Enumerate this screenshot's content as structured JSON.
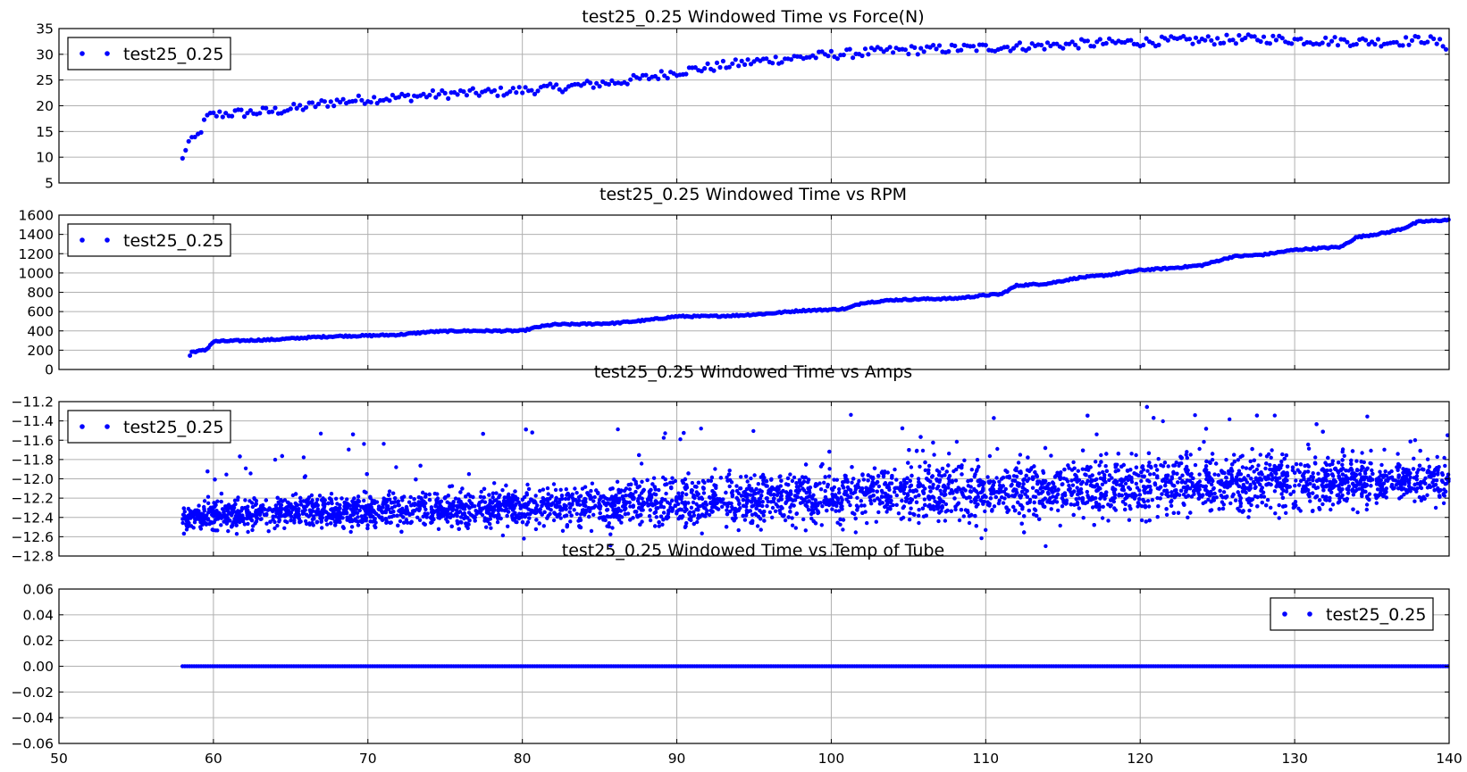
{
  "figure": {
    "series_color": "#0000ff",
    "marker": "point"
  },
  "chart_data": [
    {
      "type": "scatter",
      "title": "test25_0.25 Windowed Time vs Force(N)",
      "xlim": [
        50,
        140
      ],
      "ylim": [
        5,
        35
      ],
      "yticks": [
        "5",
        "10",
        "15",
        "20",
        "25",
        "30",
        "35"
      ],
      "xticks": [],
      "grid": true,
      "legend": {
        "position": "upper-left",
        "entries": [
          "test25_0.25"
        ]
      },
      "series": [
        {
          "name": "test25_0.25",
          "color": "#0000ff",
          "x": [
            58,
            58.3,
            58.6,
            59,
            59.3,
            59.6,
            60,
            61,
            62,
            63,
            64,
            65,
            66,
            67,
            68,
            70,
            72,
            74,
            76,
            78,
            80,
            82,
            84,
            86,
            88,
            90,
            92,
            94,
            96,
            98,
            100,
            102,
            104,
            106,
            108,
            110,
            112,
            114,
            116,
            118,
            120,
            122,
            124,
            126,
            128,
            130,
            132,
            134,
            136,
            137.5,
            138.5,
            140
          ],
          "y": [
            9.5,
            12.8,
            13.0,
            14.2,
            16.0,
            17.8,
            18.2,
            18.5,
            18.6,
            18.8,
            19.0,
            19.4,
            19.8,
            20.4,
            20.8,
            21.3,
            21.6,
            22.1,
            22.4,
            22.6,
            23.0,
            23.4,
            24.0,
            24.6,
            25.4,
            26.6,
            27.4,
            28.2,
            28.9,
            29.4,
            29.9,
            30.3,
            30.7,
            30.9,
            31.1,
            31.3,
            31.5,
            31.7,
            32.0,
            32.2,
            32.4,
            32.6,
            32.7,
            32.9,
            33.0,
            32.8,
            32.6,
            32.5,
            32.4,
            32.6,
            33.0,
            31.5
          ],
          "spread": 0.9
        }
      ]
    },
    {
      "type": "scatter",
      "title": "test25_0.25 Windowed Time vs RPM",
      "xlim": [
        50,
        140
      ],
      "ylim": [
        0,
        1600
      ],
      "yticks": [
        "0",
        "200",
        "400",
        "600",
        "800",
        "1000",
        "1200",
        "1400",
        "1600"
      ],
      "xticks": [],
      "grid": true,
      "legend": {
        "position": "upper-left",
        "entries": [
          "test25_0.25"
        ]
      },
      "series": [
        {
          "name": "test25_0.25",
          "color": "#0000ff",
          "x": [
            58,
            58.4,
            58.5,
            59.5,
            60,
            62,
            64,
            66,
            68,
            70,
            72,
            74,
            76,
            78,
            80,
            81,
            82,
            84,
            86,
            88,
            90,
            92,
            94,
            96,
            98,
            100,
            101,
            102,
            104,
            106,
            108,
            110,
            111,
            112,
            114,
            116,
            118,
            120,
            122,
            124,
            126,
            128,
            130,
            132,
            133,
            134,
            136,
            137,
            138,
            140
          ],
          "y": [
            0,
            0,
            180,
            200,
            290,
            300,
            310,
            330,
            345,
            350,
            360,
            390,
            400,
            400,
            400,
            440,
            465,
            470,
            480,
            510,
            550,
            550,
            560,
            580,
            610,
            620,
            630,
            690,
            720,
            730,
            735,
            770,
            780,
            870,
            890,
            950,
            980,
            1030,
            1050,
            1080,
            1170,
            1190,
            1240,
            1260,
            1270,
            1370,
            1420,
            1460,
            1530,
            1550
          ],
          "spread": 8
        }
      ]
    },
    {
      "type": "scatter",
      "title": "test25_0.25 Windowed Time vs Amps",
      "xlim": [
        50,
        140
      ],
      "ylim": [
        -12.8,
        -11.2
      ],
      "yticks": [
        "−12.8",
        "−12.6",
        "−12.4",
        "−12.2",
        "−12.0",
        "−11.8",
        "−11.6",
        "−11.4",
        "−11.2"
      ],
      "xticks": [],
      "grid": true,
      "legend": {
        "position": "upper-left",
        "entries": [
          "test25_0.25"
        ]
      },
      "series": [
        {
          "name": "test25_0.25",
          "color": "#0000ff",
          "x": [
            58,
            60,
            70,
            80,
            90,
            100,
            110,
            120,
            130,
            140
          ],
          "y": [
            -12.42,
            -12.37,
            -12.33,
            -12.3,
            -12.25,
            -12.18,
            -12.12,
            -12.07,
            -12.04,
            -12.02
          ],
          "spread": [
            0.12,
            0.13,
            0.15,
            0.18,
            0.22,
            0.25,
            0.27,
            0.27,
            0.25,
            0.2
          ]
        }
      ]
    },
    {
      "type": "scatter",
      "title": "test25_0.25 Windowed Time vs Temp of Tube",
      "xlim": [
        50,
        140
      ],
      "ylim": [
        -0.06,
        0.06
      ],
      "yticks": [
        "−0.06",
        "−0.04",
        "−0.02",
        "0.00",
        "0.02",
        "0.04",
        "0.06"
      ],
      "xticks": [
        "50",
        "60",
        "70",
        "80",
        "90",
        "100",
        "110",
        "120",
        "130",
        "140"
      ],
      "grid": true,
      "legend": {
        "position": "upper-right",
        "entries": [
          "test25_0.25"
        ]
      },
      "series": [
        {
          "name": "test25_0.25",
          "color": "#0000ff",
          "x": [
            58,
            140
          ],
          "y": [
            0.0,
            0.0
          ],
          "spread": 0
        }
      ]
    }
  ]
}
